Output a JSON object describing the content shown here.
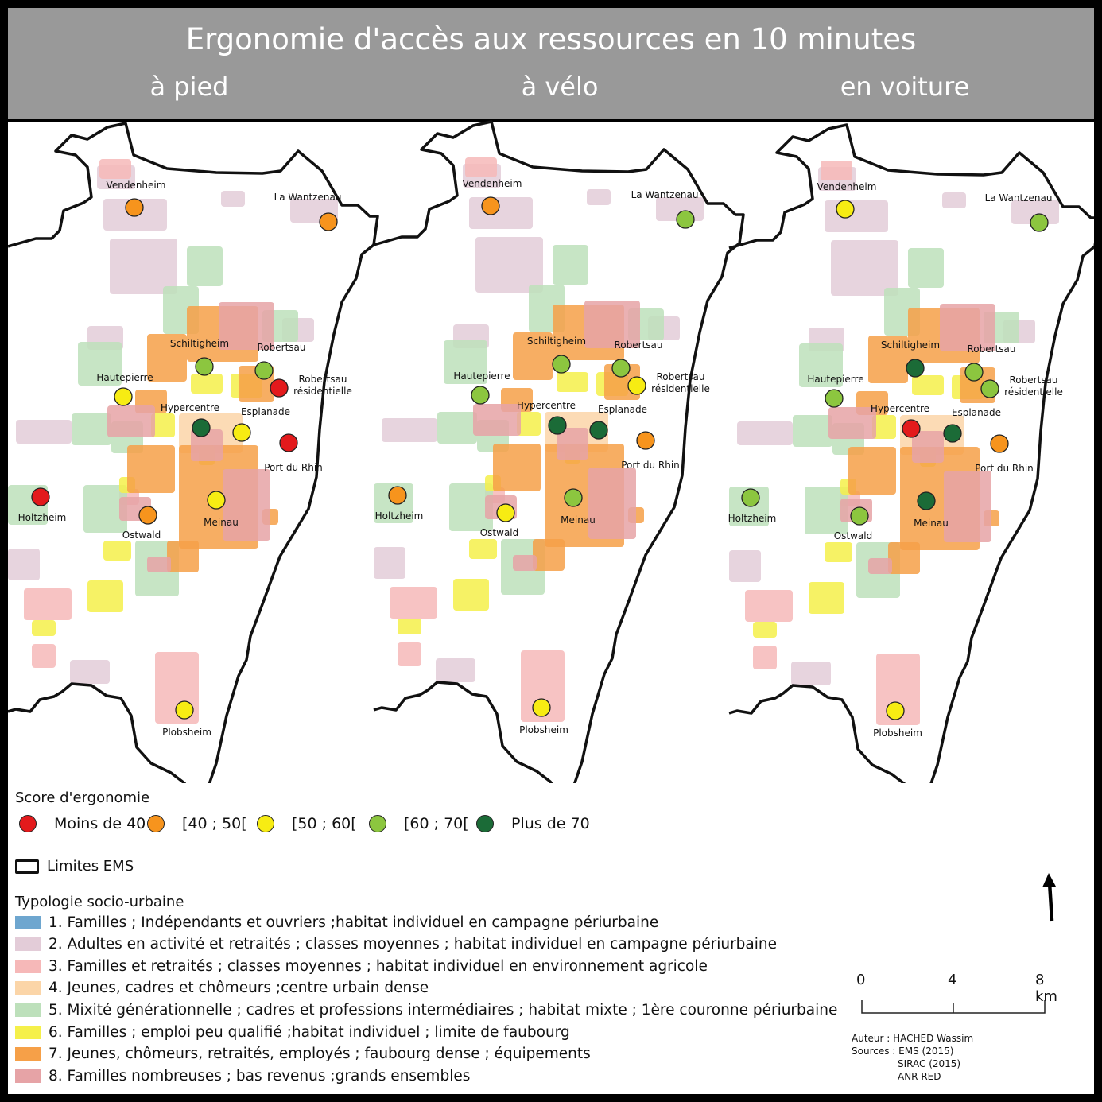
{
  "header": {
    "title": "Ergonomie d'accès aux ressources en 10 minutes",
    "subtitles": [
      "à pied",
      "à vélo",
      "en voiture"
    ]
  },
  "colors": {
    "score": {
      "lt40": "#e31a1c",
      "40_50": "#f7941d",
      "50_60": "#f7ec13",
      "60_70": "#8cc63f",
      "gt70": "#1b6b37"
    },
    "typology": [
      "#6ea6cf",
      "#e3ccd8",
      "#f6b8b8",
      "#fbd5a8",
      "#bde0bb",
      "#f5f04a",
      "#f6a048",
      "#e6a3a6"
    ]
  },
  "maps": [
    {
      "mode": "à pied",
      "places": [
        {
          "name": "Vendenheim",
          "score": "40_50"
        },
        {
          "name": "La Wantzenau",
          "score": "40_50"
        },
        {
          "name": "Schiltigheim",
          "score": "60_70"
        },
        {
          "name": "Robertsau",
          "score": "60_70"
        },
        {
          "name": "Robertsau résidentielle",
          "score": "lt40"
        },
        {
          "name": "Hautepierre",
          "score": "50_60"
        },
        {
          "name": "Hypercentre",
          "score": "gt70"
        },
        {
          "name": "Esplanade",
          "score": "50_60"
        },
        {
          "name": "Port du Rhin",
          "score": "lt40"
        },
        {
          "name": "Holtzheim",
          "score": "lt40"
        },
        {
          "name": "Ostwald",
          "score": "40_50"
        },
        {
          "name": "Meinau",
          "score": "50_60"
        },
        {
          "name": "Plobsheim",
          "score": "50_60"
        }
      ]
    },
    {
      "mode": "à vélo",
      "places": [
        {
          "name": "Vendenheim",
          "score": "40_50"
        },
        {
          "name": "La Wantzenau",
          "score": "60_70"
        },
        {
          "name": "Schiltigheim",
          "score": "60_70"
        },
        {
          "name": "Robertsau",
          "score": "60_70"
        },
        {
          "name": "Robertsau résidentielle",
          "score": "50_60"
        },
        {
          "name": "Hautepierre",
          "score": "60_70"
        },
        {
          "name": "Hypercentre",
          "score": "gt70"
        },
        {
          "name": "Esplanade",
          "score": "gt70"
        },
        {
          "name": "Port du Rhin",
          "score": "40_50"
        },
        {
          "name": "Holtzheim",
          "score": "40_50"
        },
        {
          "name": "Ostwald",
          "score": "50_60"
        },
        {
          "name": "Meinau",
          "score": "60_70"
        },
        {
          "name": "Plobsheim",
          "score": "50_60"
        }
      ]
    },
    {
      "mode": "en voiture",
      "places": [
        {
          "name": "Vendenheim",
          "score": "50_60"
        },
        {
          "name": "La Wantzenau",
          "score": "60_70"
        },
        {
          "name": "Schiltigheim",
          "score": "gt70"
        },
        {
          "name": "Robertsau",
          "score": "60_70"
        },
        {
          "name": "Robertsau résidentielle",
          "score": "60_70"
        },
        {
          "name": "Hautepierre",
          "score": "60_70"
        },
        {
          "name": "Hypercentre",
          "score": "lt40"
        },
        {
          "name": "Esplanade",
          "score": "gt70"
        },
        {
          "name": "Port du Rhin",
          "score": "40_50"
        },
        {
          "name": "Holtzheim",
          "score": "60_70"
        },
        {
          "name": "Ostwald",
          "score": "60_70"
        },
        {
          "name": "Meinau",
          "score": "gt70"
        },
        {
          "name": "Plobsheim",
          "score": "50_60"
        }
      ]
    }
  ],
  "legend": {
    "score_title": "Score d'ergonomie",
    "score_items": [
      {
        "label": "Moins de 40",
        "key": "lt40"
      },
      {
        "label": "[40 ; 50[",
        "key": "40_50"
      },
      {
        "label": "[50 ; 60[",
        "key": "50_60"
      },
      {
        "label": "[60 ; 70[",
        "key": "60_70"
      },
      {
        "label": "Plus de 70",
        "key": "gt70"
      }
    ],
    "limits_label": "Limites EMS",
    "typology_title": "Typologie socio-urbaine",
    "typology_items": [
      "1. Familles ; Indépendants et ouvriers ;habitat individuel en campagne périurbaine",
      "2. Adultes en activité et retraités ; classes moyennes ; habitat individuel en campagne périurbaine",
      "3. Familles et retraités ; classes moyennes ; habitat individuel en environnement agricole",
      "4. Jeunes, cadres et chômeurs ;centre urbain dense",
      "5. Mixité générationnelle ; cadres et professions intermédiaires ; habitat mixte ; 1ère couronne périurbaine",
      "6. Familles ; emploi peu qualifié ;habitat individuel ; limite de faubourg",
      "7. Jeunes, chômeurs, retraités, employés ; faubourg dense ; équipements",
      "8. Familles nombreuses ; bas revenus ;grands ensembles"
    ]
  },
  "scale": {
    "labels": [
      "0",
      "4",
      "8 km"
    ]
  },
  "credits": {
    "author": "Auteur : HACHED Wassim",
    "sources": [
      "Sources : EMS (2015)",
      "SIRAC (2015)",
      "ANR RED"
    ]
  }
}
